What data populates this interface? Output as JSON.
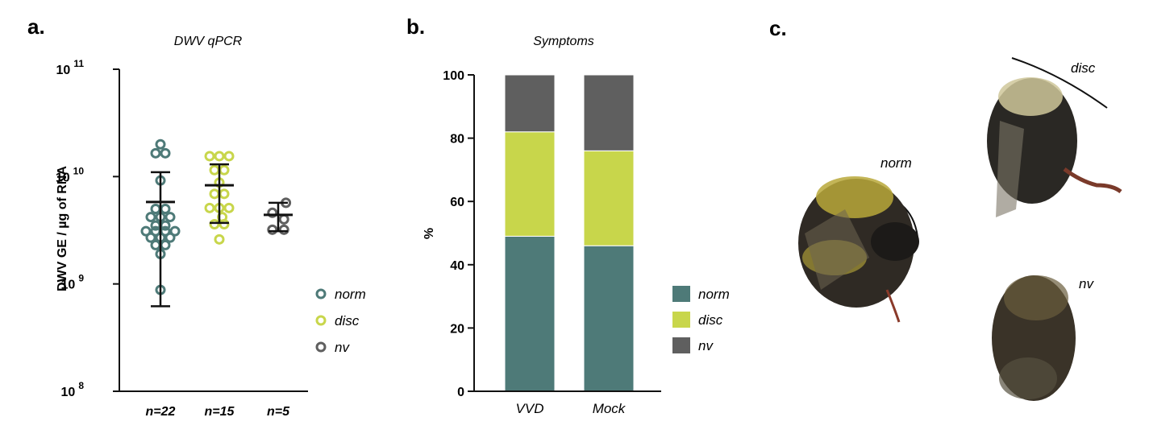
{
  "panels": {
    "a": "a.",
    "b": "b.",
    "c": "c."
  },
  "colors": {
    "norm": "#4e7a78",
    "disc": "#c8d64b",
    "nv": "#5f5f5f"
  },
  "chart_data": [
    {
      "type": "scatter",
      "title": "DWV qPCR",
      "ylabel": "DWV GE / µg of RNA",
      "yscale": "log",
      "ylim": [
        100000000,
        100000000000
      ],
      "yticks": [
        {
          "value": 100000000000,
          "base": "10",
          "exp": "11"
        },
        {
          "value": 10000000000,
          "base": "10",
          "exp": "10"
        },
        {
          "value": 1000000000,
          "base": "10",
          "exp": "9"
        },
        {
          "value": 100000000,
          "base": "10",
          "exp": "8"
        }
      ],
      "categories": [
        "n=22",
        "n=15",
        "n=5"
      ],
      "legend": [
        "norm",
        "disc",
        "nv"
      ],
      "legend_position": "right",
      "series": [
        {
          "name": "norm",
          "color": "#4e7a78",
          "mean": 5800000000,
          "err_low": 620000000,
          "err_high": 11000000000,
          "points": [
            {
              "x": 0,
              "y": 20000000000
            },
            {
              "x": -0.5,
              "y": 16500000000
            },
            {
              "x": 0.5,
              "y": 16500000000
            },
            {
              "x": 0,
              "y": 9200000000
            },
            {
              "x": -0.5,
              "y": 5000000000
            },
            {
              "x": 0.5,
              "y": 5000000000
            },
            {
              "x": -1,
              "y": 4200000000
            },
            {
              "x": 0,
              "y": 4200000000
            },
            {
              "x": 1,
              "y": 4200000000
            },
            {
              "x": -0.5,
              "y": 3500000000
            },
            {
              "x": 0.5,
              "y": 3500000000
            },
            {
              "x": -1.5,
              "y": 3100000000
            },
            {
              "x": -0.5,
              "y": 3100000000
            },
            {
              "x": 0.5,
              "y": 3100000000
            },
            {
              "x": 1.5,
              "y": 3100000000
            },
            {
              "x": -1,
              "y": 2700000000
            },
            {
              "x": 0,
              "y": 2700000000
            },
            {
              "x": 1,
              "y": 2700000000
            },
            {
              "x": -0.5,
              "y": 2300000000
            },
            {
              "x": 0.5,
              "y": 2300000000
            },
            {
              "x": 0,
              "y": 1900000000
            },
            {
              "x": 0,
              "y": 880000000
            }
          ]
        },
        {
          "name": "disc",
          "color": "#c8d64b",
          "mean": 8300000000,
          "err_low": 3700000000,
          "err_high": 13000000000,
          "points": [
            {
              "x": -1,
              "y": 15500000000
            },
            {
              "x": 0,
              "y": 15500000000
            },
            {
              "x": 1,
              "y": 15500000000
            },
            {
              "x": -0.5,
              "y": 11500000000
            },
            {
              "x": 0.5,
              "y": 11500000000
            },
            {
              "x": 0,
              "y": 8800000000
            },
            {
              "x": -0.5,
              "y": 6900000000
            },
            {
              "x": 0.5,
              "y": 6900000000
            },
            {
              "x": -1,
              "y": 5100000000
            },
            {
              "x": 0,
              "y": 5100000000
            },
            {
              "x": 1,
              "y": 5100000000
            },
            {
              "x": -0.5,
              "y": 3600000000
            },
            {
              "x": 0.5,
              "y": 3600000000
            },
            {
              "x": 0,
              "y": 2600000000
            },
            {
              "x": 0.3,
              "y": 4200000000
            }
          ]
        },
        {
          "name": "nv",
          "color": "#5f5f5f",
          "mean": 4400000000,
          "err_low": 3100000000,
          "err_high": 5700000000,
          "points": [
            {
              "x": 0.8,
              "y": 5700000000
            },
            {
              "x": -0.6,
              "y": 4600000000
            },
            {
              "x": 0.6,
              "y": 4000000000
            },
            {
              "x": -0.6,
              "y": 3200000000
            },
            {
              "x": 0.6,
              "y": 3200000000
            }
          ]
        }
      ]
    },
    {
      "type": "bar",
      "stacked": true,
      "title": "Symptoms",
      "ylabel": "%",
      "ylim": [
        0,
        100
      ],
      "yticks": [
        0,
        20,
        40,
        60,
        80,
        100
      ],
      "categories": [
        "VVD",
        "Mock"
      ],
      "legend_position": "right",
      "series": [
        {
          "name": "norm",
          "color": "#4e7a78",
          "values": [
            49,
            46
          ]
        },
        {
          "name": "disc",
          "color": "#c8d64b",
          "values": [
            33,
            30
          ]
        },
        {
          "name": "nv",
          "color": "#5f5f5f",
          "values": [
            18,
            24
          ]
        }
      ]
    }
  ],
  "photos": {
    "labels": [
      "norm",
      "disc",
      "nv"
    ]
  }
}
